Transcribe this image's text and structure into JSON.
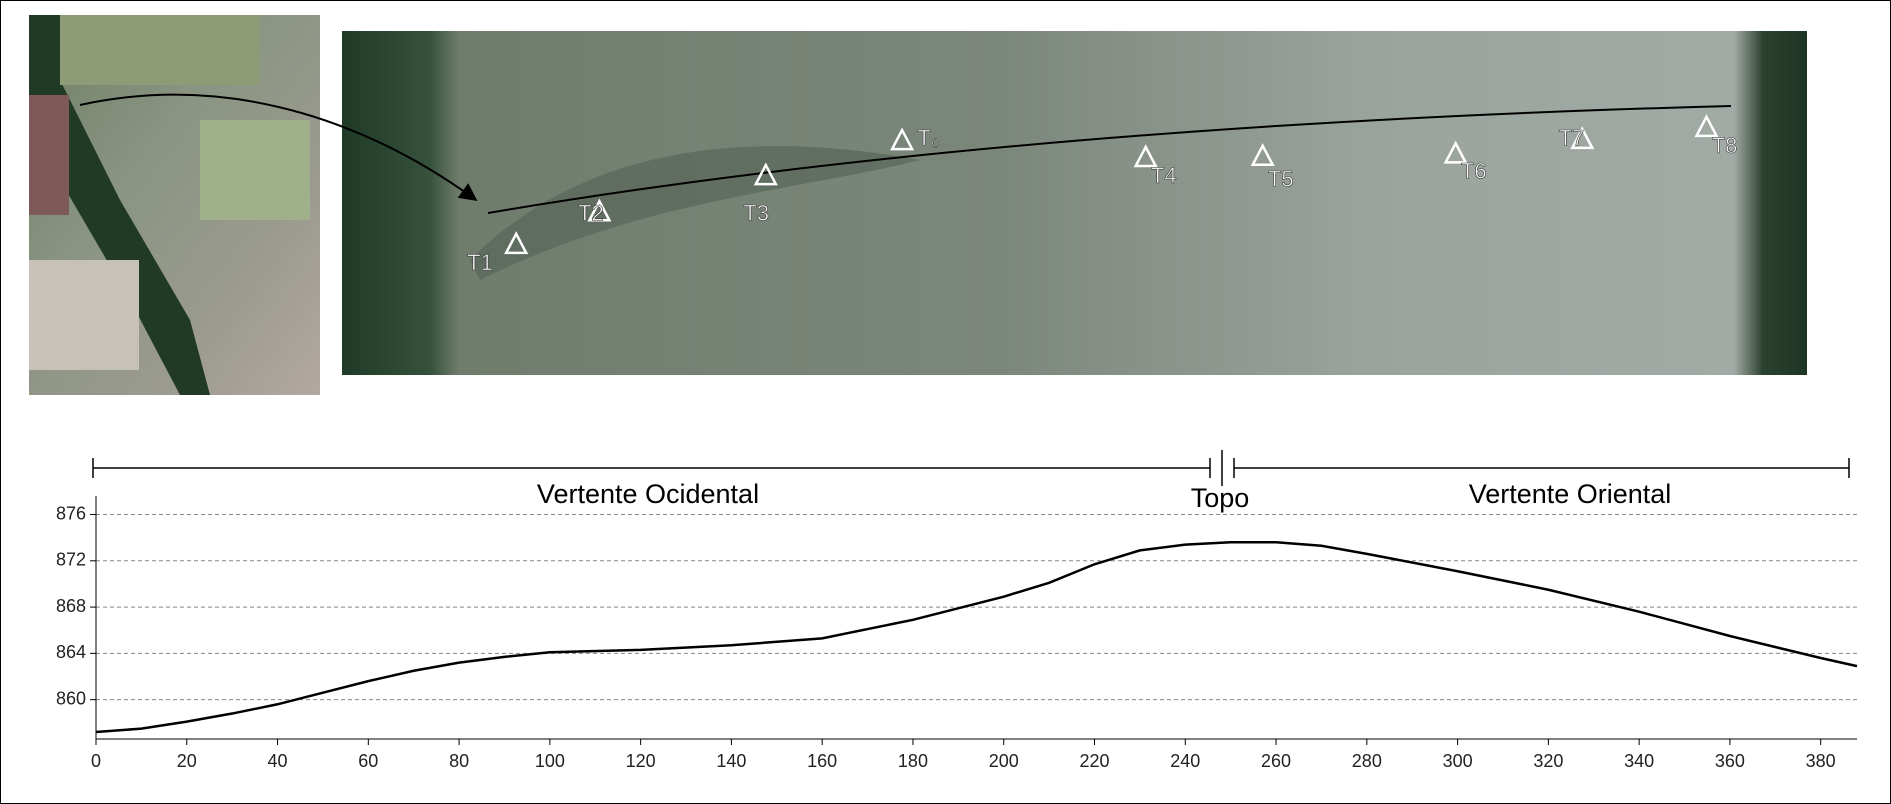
{
  "map": {
    "labels": [
      "T1",
      "T2",
      "T3",
      "T₀",
      "T4",
      "T5",
      "T6",
      "T7",
      "T8"
    ]
  },
  "chart_data": {
    "type": "line",
    "annotations": [
      "Vertente Ocidental",
      "Topo",
      "Vertente Oriental"
    ],
    "x": [
      0,
      10,
      20,
      30,
      40,
      50,
      60,
      70,
      80,
      90,
      100,
      120,
      140,
      160,
      180,
      200,
      210,
      220,
      230,
      240,
      250,
      260,
      270,
      280,
      300,
      320,
      340,
      360,
      380,
      388
    ],
    "values": [
      857.2,
      857.5,
      858.1,
      858.8,
      859.6,
      860.6,
      861.6,
      862.5,
      863.2,
      863.7,
      864.1,
      864.3,
      864.7,
      865.3,
      866.9,
      868.9,
      870.1,
      871.7,
      872.9,
      873.4,
      873.6,
      873.6,
      873.3,
      872.6,
      871.1,
      869.5,
      867.6,
      865.5,
      863.6,
      862.9
    ],
    "color": "#000000",
    "xlim": [
      0,
      388
    ],
    "xticks": [
      0,
      20,
      40,
      60,
      80,
      100,
      120,
      140,
      160,
      180,
      200,
      220,
      240,
      260,
      280,
      300,
      320,
      340,
      360,
      380
    ],
    "ylim": [
      856.6,
      877.6
    ],
    "yticks": [
      860,
      864,
      868,
      872,
      876
    ],
    "grid": true
  }
}
